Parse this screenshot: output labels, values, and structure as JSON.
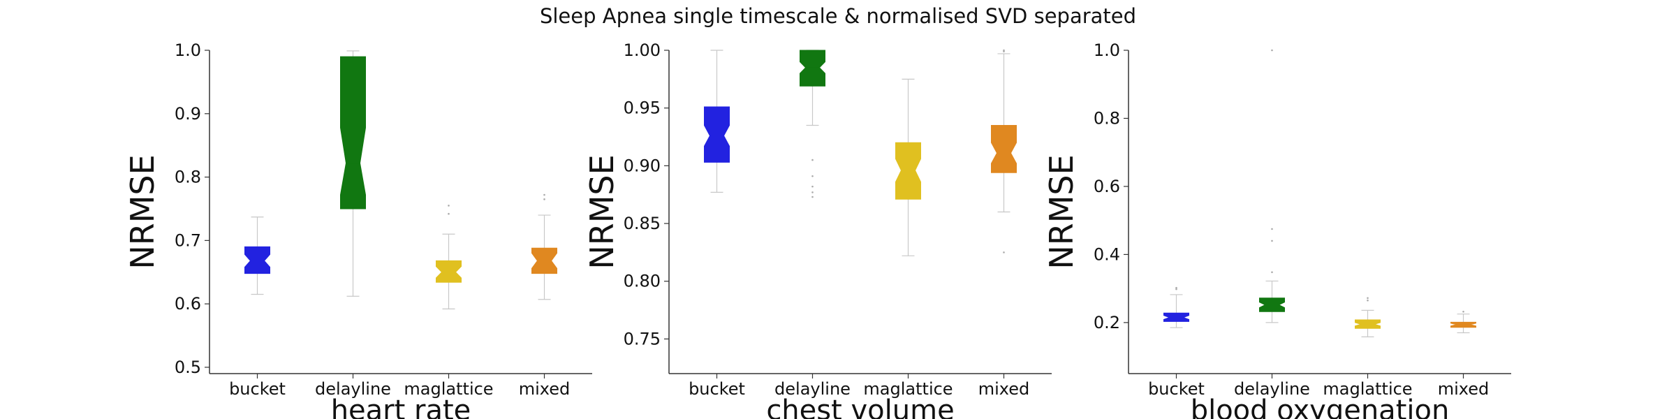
{
  "figure_title": "Sleep Apnea single timescale & normalised SVD separated",
  "colors": {
    "bucket": "#2222e0",
    "delayline": "#117711",
    "maglattice": "#e0c020",
    "mixed": "#e08820",
    "whisker": "#c8c8c8",
    "axis": "#333333"
  },
  "chart_data": [
    {
      "type": "box",
      "xlabel": "heart rate",
      "ylabel": "NRMSE",
      "categories": [
        "bucket",
        "delayline",
        "maglattice",
        "mixed"
      ],
      "ylim": [
        0.49,
        1.0
      ],
      "yticks": [
        0.5,
        0.6,
        0.7,
        0.8,
        0.9,
        1.0
      ],
      "ytick_labels": [
        "0.5",
        "0.6",
        "0.7",
        "0.8",
        "0.9",
        "1.0"
      ],
      "boxes": [
        {
          "category": "bucket",
          "whislo": 0.615,
          "q1": 0.648,
          "med": 0.668,
          "q3": 0.69,
          "whishi": 0.737,
          "ci_lo": 0.658,
          "ci_hi": 0.678,
          "fliers": []
        },
        {
          "category": "delayline",
          "whislo": 0.612,
          "q1": 0.75,
          "med": 0.822,
          "q3": 0.99,
          "whishi": 0.999,
          "ci_lo": 0.772,
          "ci_hi": 0.878,
          "fliers": []
        },
        {
          "category": "maglattice",
          "whislo": 0.592,
          "q1": 0.634,
          "med": 0.65,
          "q3": 0.668,
          "whishi": 0.71,
          "ci_lo": 0.641,
          "ci_hi": 0.659,
          "fliers": [
            0.742,
            0.755
          ]
        },
        {
          "category": "mixed",
          "whislo": 0.607,
          "q1": 0.648,
          "med": 0.668,
          "q3": 0.688,
          "whishi": 0.74,
          "ci_lo": 0.656,
          "ci_hi": 0.68,
          "fliers": [
            0.765,
            0.772
          ]
        }
      ]
    },
    {
      "type": "box",
      "xlabel": "chest volume",
      "ylabel": "NRMSE",
      "categories": [
        "bucket",
        "delayline",
        "maglattice",
        "mixed"
      ],
      "ylim": [
        0.72,
        1.0
      ],
      "yticks": [
        0.75,
        0.8,
        0.85,
        0.9,
        0.95,
        1.0
      ],
      "ytick_labels": [
        "0.75",
        "0.80",
        "0.85",
        "0.90",
        "0.95",
        "1.00"
      ],
      "boxes": [
        {
          "category": "bucket",
          "whislo": 0.877,
          "q1": 0.903,
          "med": 0.926,
          "q3": 0.951,
          "whishi": 1.0,
          "ci_lo": 0.917,
          "ci_hi": 0.935,
          "fliers": []
        },
        {
          "category": "delayline",
          "whislo": 0.935,
          "q1": 0.969,
          "med": 0.985,
          "q3": 1.0,
          "whishi": 1.0,
          "ci_lo": 0.98,
          "ci_hi": 0.99,
          "fliers": [
            0.905,
            0.891,
            0.882,
            0.877,
            0.873
          ]
        },
        {
          "category": "maglattice",
          "whislo": 0.822,
          "q1": 0.871,
          "med": 0.896,
          "q3": 0.92,
          "whishi": 0.975,
          "ci_lo": 0.886,
          "ci_hi": 0.906,
          "fliers": []
        },
        {
          "category": "mixed",
          "whislo": 0.86,
          "q1": 0.894,
          "med": 0.911,
          "q3": 0.935,
          "whishi": 0.997,
          "ci_lo": 0.902,
          "ci_hi": 0.92,
          "fliers": [
            0.825,
            0.999,
            1.0
          ]
        }
      ]
    },
    {
      "type": "box",
      "xlabel": "blood oxygenation",
      "ylabel": "NRMSE",
      "categories": [
        "bucket",
        "delayline",
        "maglattice",
        "mixed"
      ],
      "ylim": [
        0.05,
        1.0
      ],
      "yticks": [
        0.2,
        0.4,
        0.6,
        0.8,
        1.0
      ],
      "ytick_labels": [
        "0.2",
        "0.4",
        "0.6",
        "0.8",
        "1.0"
      ],
      "boxes": [
        {
          "category": "bucket",
          "whislo": 0.185,
          "q1": 0.203,
          "med": 0.215,
          "q3": 0.228,
          "whishi": 0.282,
          "ci_lo": 0.209,
          "ci_hi": 0.221,
          "fliers": [
            0.298,
            0.302
          ]
        },
        {
          "category": "delayline",
          "whislo": 0.2,
          "q1": 0.232,
          "med": 0.252,
          "q3": 0.272,
          "whishi": 0.322,
          "ci_lo": 0.244,
          "ci_hi": 0.26,
          "fliers": [
            0.348,
            0.44,
            0.475,
            1.0
          ]
        },
        {
          "category": "maglattice",
          "whislo": 0.158,
          "q1": 0.183,
          "med": 0.195,
          "q3": 0.208,
          "whishi": 0.236,
          "ci_lo": 0.19,
          "ci_hi": 0.2,
          "fliers": [
            0.265,
            0.272
          ]
        },
        {
          "category": "mixed",
          "whislo": 0.17,
          "q1": 0.186,
          "med": 0.194,
          "q3": 0.201,
          "whishi": 0.225,
          "ci_lo": 0.19,
          "ci_hi": 0.198,
          "fliers": [
            0.232
          ]
        }
      ]
    }
  ]
}
